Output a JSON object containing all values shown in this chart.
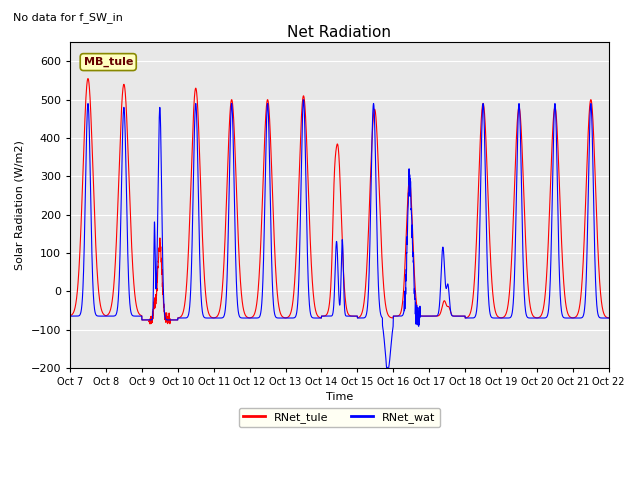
{
  "title": "Net Radiation",
  "subtitle": "No data for f_SW_in",
  "ylabel": "Solar Radiation (W/m2)",
  "xlabel": "Time",
  "ylim": [
    -200,
    650
  ],
  "yticks": [
    -200,
    -100,
    0,
    100,
    200,
    300,
    400,
    500,
    600
  ],
  "legend_labels": [
    "RNet_tule",
    "RNet_wat"
  ],
  "line_colors": [
    "red",
    "blue"
  ],
  "background_color": "#e8e8e8",
  "legend_box_facecolor": "#fffff0",
  "legend_box_edgecolor": "#aaaaaa",
  "annotation_box": "MB_tule",
  "annotation_box_facecolor": "#ffffc0",
  "annotation_box_edgecolor": "#888800",
  "x_tick_labels": [
    "Oct 7",
    "Oct 8",
    "Oct 9",
    "Oct 10",
    "Oct 11",
    "Oct 12",
    "Oct 13",
    "Oct 14",
    "Oct 15",
    "Oct 16",
    "Oct 17",
    "Oct 18",
    "Oct 19",
    "Oct 20",
    "Oct 21",
    "Oct 22"
  ],
  "num_days": 15,
  "points_per_day": 288
}
